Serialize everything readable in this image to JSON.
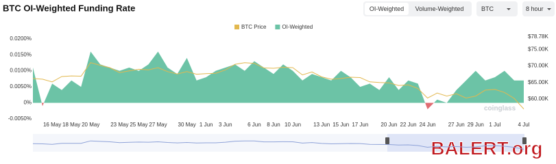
{
  "header": {
    "title": "BTC OI-Weighted Funding Rate",
    "tabs": [
      "OI-Weighted",
      "Volume-Weighted"
    ],
    "symbol": "BTC",
    "interval": "8 hour"
  },
  "watermark": "coinglass",
  "overlay_logo": "BALERT.org",
  "chart_data": {
    "type": "area-line",
    "categories": [
      null,
      null,
      "16 May",
      null,
      "18 May",
      null,
      "20 May",
      null,
      null,
      "23 May",
      null,
      "25 May",
      null,
      "27 May",
      null,
      null,
      "30 May",
      null,
      "1 Jun",
      null,
      "3 Jun",
      null,
      null,
      "6 Jun",
      null,
      "8 Jun",
      null,
      "10 Jun",
      null,
      null,
      "13 Jun",
      null,
      "15 Jun",
      null,
      "17 Jun",
      null,
      null,
      "20 Jun",
      null,
      "22 Jun",
      null,
      "24 Jun",
      null,
      null,
      "27 Jun",
      null,
      "29 Jun",
      null,
      "1 Jul",
      null,
      null,
      "4 Jul"
    ],
    "series": [
      {
        "name": "BTC Price",
        "color": "#e2b84f",
        "axis": "y2",
        "values": [
          66200,
          66000,
          65200,
          66800,
          67000,
          66900,
          71000,
          70200,
          69500,
          68000,
          68500,
          69000,
          68800,
          69500,
          68300,
          67600,
          68300,
          67500,
          67700,
          67800,
          68800,
          70500,
          71000,
          70800,
          69400,
          69300,
          69600,
          69500,
          67300,
          68200,
          66700,
          66000,
          66200,
          66600,
          66500,
          65200,
          65000,
          64900,
          64100,
          64300,
          63200,
          60300,
          61800,
          60900,
          61600,
          60300,
          60900,
          62700,
          62900,
          62000,
          60200,
          57000
        ]
      },
      {
        "name": "OI-Weighted",
        "color": "#6cc3a6",
        "negative_color": "#e06c72",
        "values": [
          0.011,
          -0.001,
          0.006,
          0.004,
          0.007,
          0.005,
          0.016,
          0.012,
          0.011,
          0.01,
          0.011,
          0.01,
          0.012,
          0.016,
          0.011,
          0.009,
          0.014,
          0.007,
          0.008,
          0.01,
          0.011,
          0.012,
          0.01,
          0.013,
          0.011,
          0.009,
          0.012,
          0.01,
          0.007,
          0.009,
          0.008,
          0.007,
          0.01,
          0.008,
          0.005,
          0.006,
          0.004,
          0.008,
          0.004,
          0.007,
          0.006,
          -0.002,
          0.001,
          0.0,
          0.004,
          0.007,
          0.01,
          0.007,
          0.008,
          0.01,
          0.007,
          0.007
        ]
      }
    ],
    "ylim": [
      -0.005,
      0.021
    ],
    "yticks": [
      {
        "value": -0.005,
        "label": "-0.0050%"
      },
      {
        "value": 0,
        "label": "0%"
      },
      {
        "value": 0.005,
        "label": "0.0050%"
      },
      {
        "value": 0.01,
        "label": "0.0100%"
      },
      {
        "value": 0.015,
        "label": "0.0150%"
      },
      {
        "value": 0.02,
        "label": "0.0200%"
      }
    ],
    "y2lim": [
      54000,
      79200
    ],
    "y2ticks": [
      {
        "value": 60000,
        "label": "$60.00K"
      },
      {
        "value": 65000,
        "label": "$65.00K"
      },
      {
        "value": 70000,
        "label": "$70.00K"
      },
      {
        "value": 75000,
        "label": "$75.00K"
      },
      {
        "value": 78780,
        "label": "$78.78K"
      }
    ],
    "grid": false,
    "legend": "top"
  }
}
